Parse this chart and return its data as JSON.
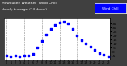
{
  "title_line1": "Milwaukee Weather  Wind Chill",
  "title_line2": "Hourly Average  (24 Hours)",
  "hours": [
    0,
    1,
    2,
    3,
    4,
    5,
    6,
    7,
    8,
    9,
    10,
    11,
    12,
    13,
    14,
    15,
    16,
    17,
    18,
    19,
    20,
    21,
    22,
    23
  ],
  "wind_chill": [
    -5,
    -6,
    -5,
    -6,
    -5,
    -5,
    -3,
    5,
    13,
    21,
    28,
    33,
    36,
    37,
    35,
    28,
    20,
    14,
    10,
    6,
    2,
    -2,
    -4,
    -6
  ],
  "dot_color": "#0000ff",
  "bg_color": "#ffffff",
  "outer_bg": "#404040",
  "grid_color": "#888888",
  "grid_hours": [
    0,
    4,
    8,
    12,
    16,
    20
  ],
  "ylim": [
    -10,
    42
  ],
  "xlim": [
    -0.5,
    23.5
  ],
  "ytick_vals": [
    -5,
    0,
    5,
    10,
    15,
    20,
    25,
    30,
    35
  ],
  "ytick_labels": [
    "-5",
    "0",
    "5",
    "10",
    "15",
    "20",
    "25",
    "30",
    "35"
  ],
  "legend_label": "Wind Chill",
  "legend_color": "#0000ff",
  "legend_text_color": "#ffffff"
}
